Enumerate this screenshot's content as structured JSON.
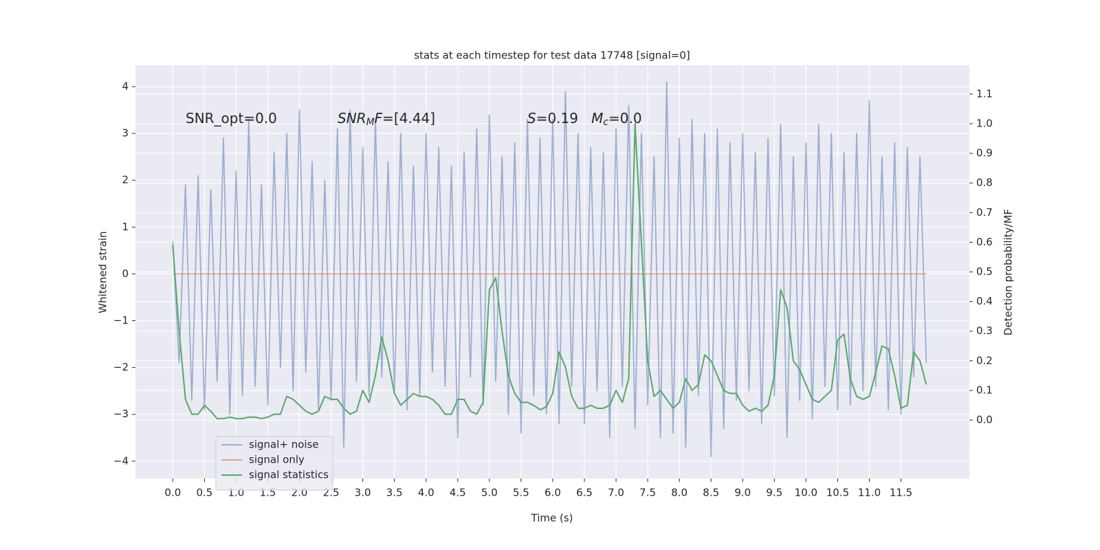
{
  "chart_data": {
    "type": "line",
    "title": "stats at each timestep for test data 17748 [signal=0]",
    "xlabel": "Time (s)",
    "ylabel": "Whitened strain",
    "y2label": "Detection probability/MF",
    "x": [
      0,
      0.1,
      0.2,
      0.3,
      0.4,
      0.5,
      0.6,
      0.7,
      0.8,
      0.9,
      1,
      1.1,
      1.2,
      1.3,
      1.4,
      1.5,
      1.6,
      1.7,
      1.8,
      1.9,
      2,
      2.1,
      2.2,
      2.3,
      2.4,
      2.5,
      2.6,
      2.7,
      2.8,
      2.9,
      3,
      3.1,
      3.2,
      3.3,
      3.4,
      3.5,
      3.6,
      3.7,
      3.8,
      3.9,
      4,
      4.1,
      4.2,
      4.3,
      4.4,
      4.5,
      4.6,
      4.7,
      4.8,
      4.9,
      5,
      5.1,
      5.2,
      5.3,
      5.4,
      5.5,
      5.6,
      5.7,
      5.8,
      5.9,
      6,
      6.1,
      6.2,
      6.3,
      6.4,
      6.5,
      6.6,
      6.7,
      6.8,
      6.9,
      7,
      7.1,
      7.2,
      7.3,
      7.4,
      7.5,
      7.6,
      7.7,
      7.8,
      7.9,
      8,
      8.1,
      8.2,
      8.3,
      8.4,
      8.5,
      8.6,
      8.7,
      8.8,
      8.9,
      9,
      9.1,
      9.2,
      9.3,
      9.4,
      9.5,
      9.6,
      9.7,
      9.8,
      9.9,
      10,
      10.1,
      10.2,
      10.3,
      10.4,
      10.5,
      10.6,
      10.7,
      10.8,
      10.9,
      11,
      11.1,
      11.2,
      11.3,
      11.4,
      11.5,
      11.6,
      11.7,
      11.8,
      11.9
    ],
    "series": [
      {
        "name": "signal+ noise",
        "color": "#4c72b0",
        "opacity": 0.5,
        "values": [
          0.7,
          -1.9,
          1.9,
          -2.7,
          2.1,
          -2.9,
          1.8,
          -2.3,
          2.9,
          -3.0,
          2.2,
          -2.6,
          3.3,
          -2.4,
          1.9,
          -2.8,
          2.6,
          -2.0,
          3.0,
          -2.5,
          3.5,
          -2.1,
          2.4,
          -2.9,
          2.0,
          -2.7,
          3.1,
          -3.7,
          3.5,
          -2.3,
          2.7,
          -2.6,
          3.3,
          -2.2,
          2.4,
          -2.5,
          3.0,
          -2.9,
          2.3,
          -2.6,
          3.0,
          -2.1,
          2.7,
          -2.4,
          2.3,
          -3.5,
          2.6,
          -2.2,
          3.1,
          -2.8,
          3.4,
          -2.3,
          2.5,
          -3.0,
          2.8,
          -3.4,
          3.3,
          -2.6,
          2.9,
          -3.0,
          3.3,
          -3.2,
          3.9,
          -2.4,
          3.0,
          -3.2,
          2.7,
          -2.5,
          2.6,
          -3.5,
          3.1,
          -2.4,
          3.6,
          -3.3,
          3.0,
          -2.8,
          2.5,
          -3.5,
          4.1,
          -3.4,
          2.9,
          -3.7,
          3.3,
          -2.6,
          3.0,
          -3.9,
          3.1,
          -3.3,
          2.8,
          -2.7,
          3.0,
          -2.5,
          2.6,
          -3.2,
          2.9,
          -2.6,
          3.2,
          -3.5,
          2.5,
          -2.7,
          2.8,
          -3.1,
          3.2,
          -2.4,
          3.0,
          -2.9,
          2.6,
          -2.8,
          3.0,
          -2.5,
          3.7,
          -2.4,
          2.5,
          -2.9,
          2.8,
          -3.0,
          2.7,
          -2.2,
          2.5,
          -1.9
        ]
      },
      {
        "name": "signal only",
        "color": "#dd8452",
        "opacity": 0.7,
        "x": [
          0,
          11.9
        ],
        "values": [
          0,
          0
        ]
      },
      {
        "name": "signal statistics",
        "color": "#55a868",
        "opacity": 1,
        "axis": "y2",
        "values": [
          0.59,
          0.3,
          0.07,
          0.02,
          0.02,
          0.05,
          0.03,
          0.005,
          0.005,
          0.01,
          0.005,
          0.005,
          0.01,
          0.01,
          0.005,
          0.01,
          0.02,
          0.02,
          0.08,
          0.07,
          0.05,
          0.03,
          0.02,
          0.03,
          0.08,
          0.07,
          0.07,
          0.04,
          0.02,
          0.03,
          0.1,
          0.06,
          0.15,
          0.28,
          0.2,
          0.09,
          0.05,
          0.07,
          0.09,
          0.08,
          0.08,
          0.07,
          0.05,
          0.02,
          0.02,
          0.07,
          0.07,
          0.03,
          0.02,
          0.06,
          0.44,
          0.48,
          0.3,
          0.15,
          0.09,
          0.06,
          0.06,
          0.05,
          0.035,
          0.045,
          0.09,
          0.23,
          0.18,
          0.08,
          0.04,
          0.04,
          0.05,
          0.04,
          0.04,
          0.05,
          0.1,
          0.06,
          0.14,
          1.0,
          0.6,
          0.2,
          0.08,
          0.1,
          0.07,
          0.04,
          0.06,
          0.14,
          0.1,
          0.12,
          0.22,
          0.2,
          0.15,
          0.1,
          0.09,
          0.09,
          0.05,
          0.03,
          0.04,
          0.03,
          0.05,
          0.15,
          0.44,
          0.38,
          0.2,
          0.17,
          0.12,
          0.07,
          0.06,
          0.08,
          0.1,
          0.27,
          0.29,
          0.14,
          0.08,
          0.07,
          0.08,
          0.16,
          0.25,
          0.24,
          0.15,
          0.04,
          0.05,
          0.23,
          0.2,
          0.12
        ]
      }
    ],
    "xlim": [
      -0.59,
      12.58
    ],
    "ylim": [
      -4.37,
      4.455
    ],
    "y2lim": [
      -0.197,
      1.197
    ],
    "xticks": [
      {
        "value": 0,
        "label": "0.0"
      },
      0.5,
      {
        "value": 1,
        "label": "1.0"
      },
      1.5,
      {
        "value": 2,
        "label": "2.0"
      },
      2.5,
      {
        "value": 3,
        "label": "3.0"
      },
      3.5,
      {
        "value": 4,
        "label": "4.0"
      },
      4.5,
      {
        "value": 5,
        "label": "5.0"
      },
      5.5,
      {
        "value": 6,
        "label": "6.0"
      },
      6.5,
      {
        "value": 7,
        "label": "7.0"
      },
      7.5,
      {
        "value": 8,
        "label": "8.0"
      },
      8.5,
      {
        "value": 9,
        "label": "9.0"
      },
      9.5,
      {
        "value": 10,
        "label": "10.0"
      },
      10.5,
      {
        "value": 11,
        "label": "11.0"
      },
      11.5
    ],
    "yticks": [
      {
        "value": -4,
        "label": "−4"
      },
      {
        "value": -3,
        "label": "−3"
      },
      {
        "value": -2,
        "label": "−2"
      },
      {
        "value": -1,
        "label": "−1"
      },
      0,
      1,
      2,
      3,
      4
    ],
    "y2ticks": [
      {
        "value": 0,
        "label": "0.0"
      },
      0.1,
      0.2,
      0.3,
      0.4,
      0.5,
      0.6,
      0.7,
      0.8,
      0.9,
      {
        "value": 1,
        "label": "1.0"
      },
      1.1
    ],
    "grid": true,
    "legend": "lower left",
    "annotations": [
      [
        {
          "text": "SNR_opt=0.0"
        }
      ],
      [
        {
          "text": "SNR",
          "italic": true
        },
        {
          "text": "M",
          "italic": true,
          "sub": true
        },
        {
          "text": "F",
          "italic": true
        },
        {
          "text": "=[4.44]"
        }
      ],
      [
        {
          "text": "S",
          "italic": true
        },
        {
          "text": "=0.19   "
        },
        {
          "text": "M",
          "italic": true
        },
        {
          "text": "c",
          "italic": true,
          "sub": true
        },
        {
          "text": "=0.0"
        }
      ]
    ]
  }
}
